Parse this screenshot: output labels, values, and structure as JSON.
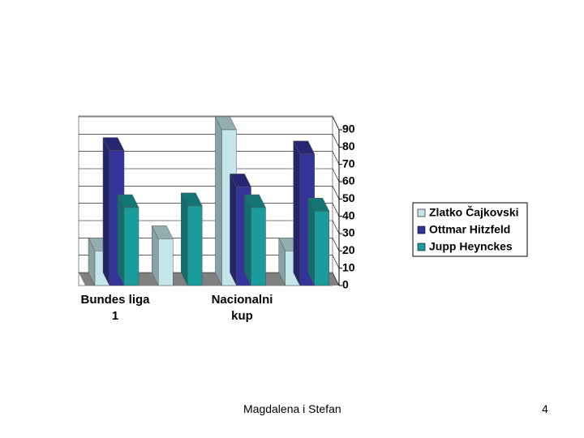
{
  "chart_data": {
    "type": "bar3d",
    "categories": [
      "Bundes liga 1",
      null,
      "Nacionalni kup",
      null
    ],
    "series": [
      {
        "name": "Zlatko Čajkovski",
        "color": "#c4e6ea",
        "values": [
          20,
          27,
          90,
          20
        ]
      },
      {
        "name": "Ottmar Hitzfeld",
        "color": "#333399",
        "values": [
          78,
          null,
          57,
          76
        ]
      },
      {
        "name": "Jupp Heynckes",
        "color": "#1a9c9c",
        "values": [
          45,
          46,
          45,
          43
        ]
      }
    ],
    "ylim": [
      0,
      90
    ],
    "yticks": [
      0,
      10,
      20,
      30,
      40,
      50,
      60,
      70,
      80,
      90
    ],
    "grid": true,
    "legend": "right"
  },
  "footer": {
    "author": "Magdalena i Stefan",
    "page": "4"
  }
}
